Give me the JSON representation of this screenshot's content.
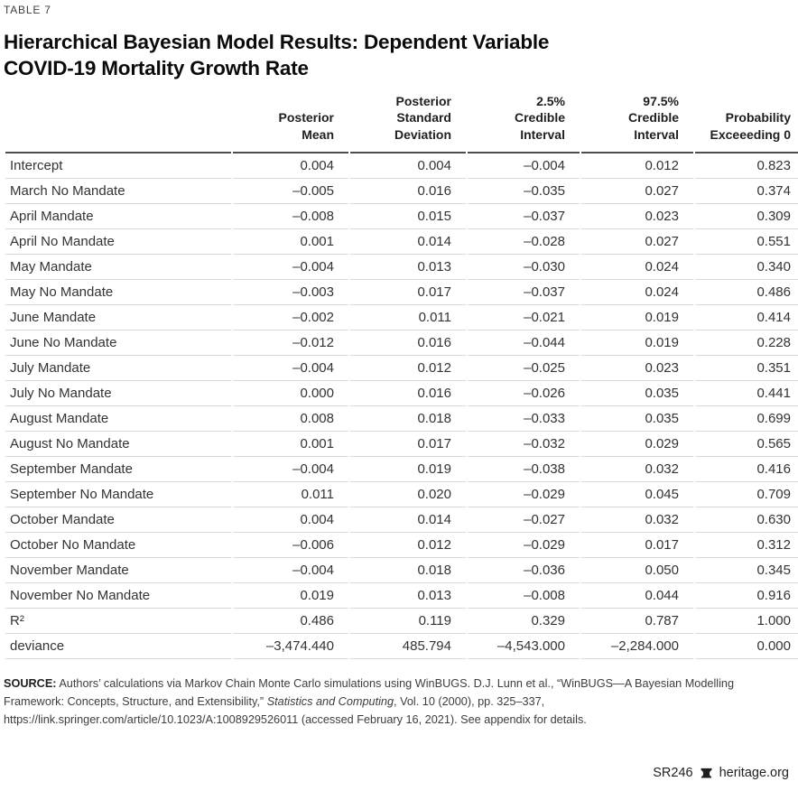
{
  "page": {
    "kicker": "TABLE 7",
    "title": "Hierarchical Bayesian Model Results: Dependent Variable\nCOVID-19 Mortality Growth Rate"
  },
  "table": {
    "columns": [
      "Posterior\nMean",
      "Posterior\nStandard\nDeviation",
      "2.5%\nCredible\nInterval",
      "97.5%\nCredible\nInterval",
      "Probability\nExceeeding 0"
    ],
    "rows": [
      [
        "Intercept",
        "0.004",
        "0.004",
        "–0.004",
        "0.012",
        "0.823"
      ],
      [
        "March No Mandate",
        "–0.005",
        "0.016",
        "–0.035",
        "0.027",
        "0.374"
      ],
      [
        "April Mandate",
        "–0.008",
        "0.015",
        "–0.037",
        "0.023",
        "0.309"
      ],
      [
        "April No Mandate",
        "0.001",
        "0.014",
        "–0.028",
        "0.027",
        "0.551"
      ],
      [
        "May Mandate",
        "–0.004",
        "0.013",
        "–0.030",
        "0.024",
        "0.340"
      ],
      [
        "May No Mandate",
        "–0.003",
        "0.017",
        "–0.037",
        "0.024",
        "0.486"
      ],
      [
        "June Mandate",
        "–0.002",
        "0.011",
        "–0.021",
        "0.019",
        "0.414"
      ],
      [
        "June No Mandate",
        "–0.012",
        "0.016",
        "–0.044",
        "0.019",
        "0.228"
      ],
      [
        "July Mandate",
        "–0.004",
        "0.012",
        "–0.025",
        "0.023",
        "0.351"
      ],
      [
        "July No Mandate",
        "0.000",
        "0.016",
        "–0.026",
        "0.035",
        "0.441"
      ],
      [
        "August Mandate",
        "0.008",
        "0.018",
        "–0.033",
        "0.035",
        "0.699"
      ],
      [
        "August No Mandate",
        "0.001",
        "0.017",
        "–0.032",
        "0.029",
        "0.565"
      ],
      [
        "September Mandate",
        "–0.004",
        "0.019",
        "–0.038",
        "0.032",
        "0.416"
      ],
      [
        "September No Mandate",
        "0.011",
        "0.020",
        "–0.029",
        "0.045",
        "0.709"
      ],
      [
        "October Mandate",
        "0.004",
        "0.014",
        "–0.027",
        "0.032",
        "0.630"
      ],
      [
        "October No Mandate",
        "–0.006",
        "0.012",
        "–0.029",
        "0.017",
        "0.312"
      ],
      [
        "November Mandate",
        "–0.004",
        "0.018",
        "–0.036",
        "0.050",
        "0.345"
      ],
      [
        "November No Mandate",
        "0.019",
        "0.013",
        "–0.008",
        "0.044",
        "0.916"
      ],
      [
        "R²",
        "0.486",
        "0.119",
        "0.329",
        "0.787",
        "1.000"
      ],
      [
        "deviance",
        "–3,474.440",
        "485.794",
        "–4,543.000",
        "–2,284.000",
        "0.000"
      ]
    ]
  },
  "source": {
    "label": "SOURCE:",
    "text_before_italic": " Authors’ calculations via Markov Chain Monte Carlo simulations using WinBUGS. D.J. Lunn et al., “WinBUGS—A Bayesian Modelling Framework: Concepts, Structure, and Extensibility,” ",
    "italic": "Statistics and Computing",
    "text_after_italic": ", Vol. 10 (2000), pp. 325–337, https://link.springer.com/article/10.1023/A:1008929526011 (accessed February 16, 2021). See appendix for details."
  },
  "footer": {
    "report_id": "SR246",
    "site": "heritage.org"
  },
  "colors": {
    "title_text": "#0b0b0b",
    "body_text": "#333333",
    "kicker_text": "#404040",
    "header_rule": "#4c4c4c",
    "row_rule": "#d9d9d9",
    "source_text": "#3d3d3d"
  }
}
